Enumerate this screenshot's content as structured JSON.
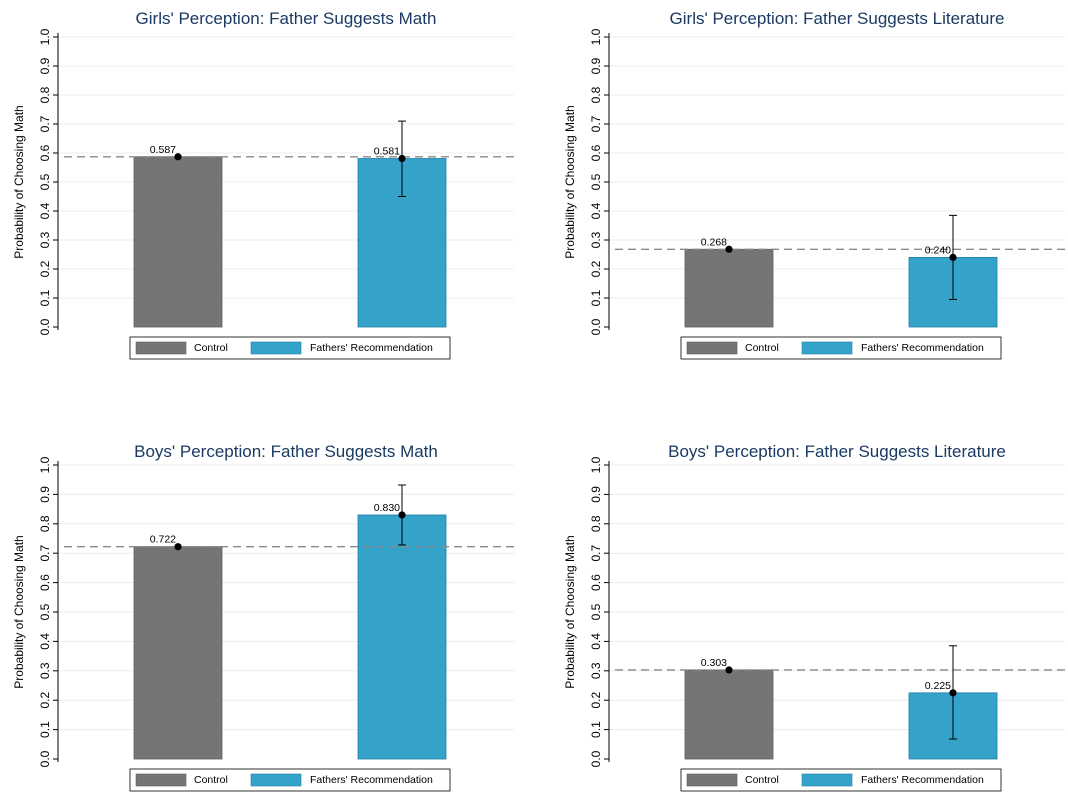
{
  "chart_data": [
    {
      "type": "bar",
      "title": "Girls' Perception: Father Suggests Math",
      "ylabel": "Probability of Choosing Math",
      "ylim": [
        0,
        1
      ],
      "yticks": [
        "0.0",
        "0.1",
        "0.2",
        "0.3",
        "0.4",
        "0.5",
        "0.6",
        "0.7",
        "0.8",
        "0.9",
        "1.0"
      ],
      "categories": [
        "Control",
        "Fathers' Recommendation"
      ],
      "values": [
        0.587,
        0.581
      ],
      "value_labels": [
        "0.587",
        "0.581"
      ],
      "error_bars": [
        null,
        [
          0.45,
          0.71
        ]
      ],
      "reference_line": 0.587,
      "colors": [
        "#757575",
        "#35a2c9"
      ],
      "legend": [
        "Control",
        "Fathers' Recommendation"
      ],
      "legend_position": "bottom"
    },
    {
      "type": "bar",
      "title": "Girls' Perception: Father Suggests Literature",
      "ylabel": "Probability of Choosing Math",
      "ylim": [
        0,
        1
      ],
      "yticks": [
        "0.0",
        "0.1",
        "0.2",
        "0.3",
        "0.4",
        "0.5",
        "0.6",
        "0.7",
        "0.8",
        "0.9",
        "1.0"
      ],
      "categories": [
        "Control",
        "Fathers' Recommendation"
      ],
      "values": [
        0.268,
        0.24
      ],
      "value_labels": [
        "0.268",
        "0.240"
      ],
      "error_bars": [
        null,
        [
          0.095,
          0.385
        ]
      ],
      "reference_line": 0.268,
      "colors": [
        "#757575",
        "#35a2c9"
      ],
      "legend": [
        "Control",
        "Fathers' Recommendation"
      ],
      "legend_position": "bottom"
    },
    {
      "type": "bar",
      "title": "Boys' Perception: Father Suggests Math",
      "ylabel": "Probability of Choosing Math",
      "ylim": [
        0,
        1
      ],
      "yticks": [
        "0.0",
        "0.1",
        "0.2",
        "0.3",
        "0.4",
        "0.5",
        "0.6",
        "0.7",
        "0.8",
        "0.9",
        "1.0"
      ],
      "categories": [
        "Control",
        "Fathers' Recommendation"
      ],
      "values": [
        0.722,
        0.83
      ],
      "value_labels": [
        "0.722",
        "0.830"
      ],
      "error_bars": [
        null,
        [
          0.728,
          0.932
        ]
      ],
      "reference_line": 0.722,
      "colors": [
        "#757575",
        "#35a2c9"
      ],
      "legend": [
        "Control",
        "Fathers' Recommendation"
      ],
      "legend_position": "bottom"
    },
    {
      "type": "bar",
      "title": "Boys' Perception: Father Suggests Literature",
      "ylabel": "Probability of Choosing Math",
      "ylim": [
        0,
        1
      ],
      "yticks": [
        "0.0",
        "0.1",
        "0.2",
        "0.3",
        "0.4",
        "0.5",
        "0.6",
        "0.7",
        "0.8",
        "0.9",
        "1.0"
      ],
      "categories": [
        "Control",
        "Fathers' Recommendation"
      ],
      "values": [
        0.303,
        0.225
      ],
      "value_labels": [
        "0.303",
        "0.225"
      ],
      "error_bars": [
        null,
        [
          0.068,
          0.385
        ]
      ],
      "reference_line": 0.303,
      "colors": [
        "#757575",
        "#35a2c9"
      ],
      "legend": [
        "Control",
        "Fathers' Recommendation"
      ],
      "legend_position": "bottom"
    }
  ]
}
